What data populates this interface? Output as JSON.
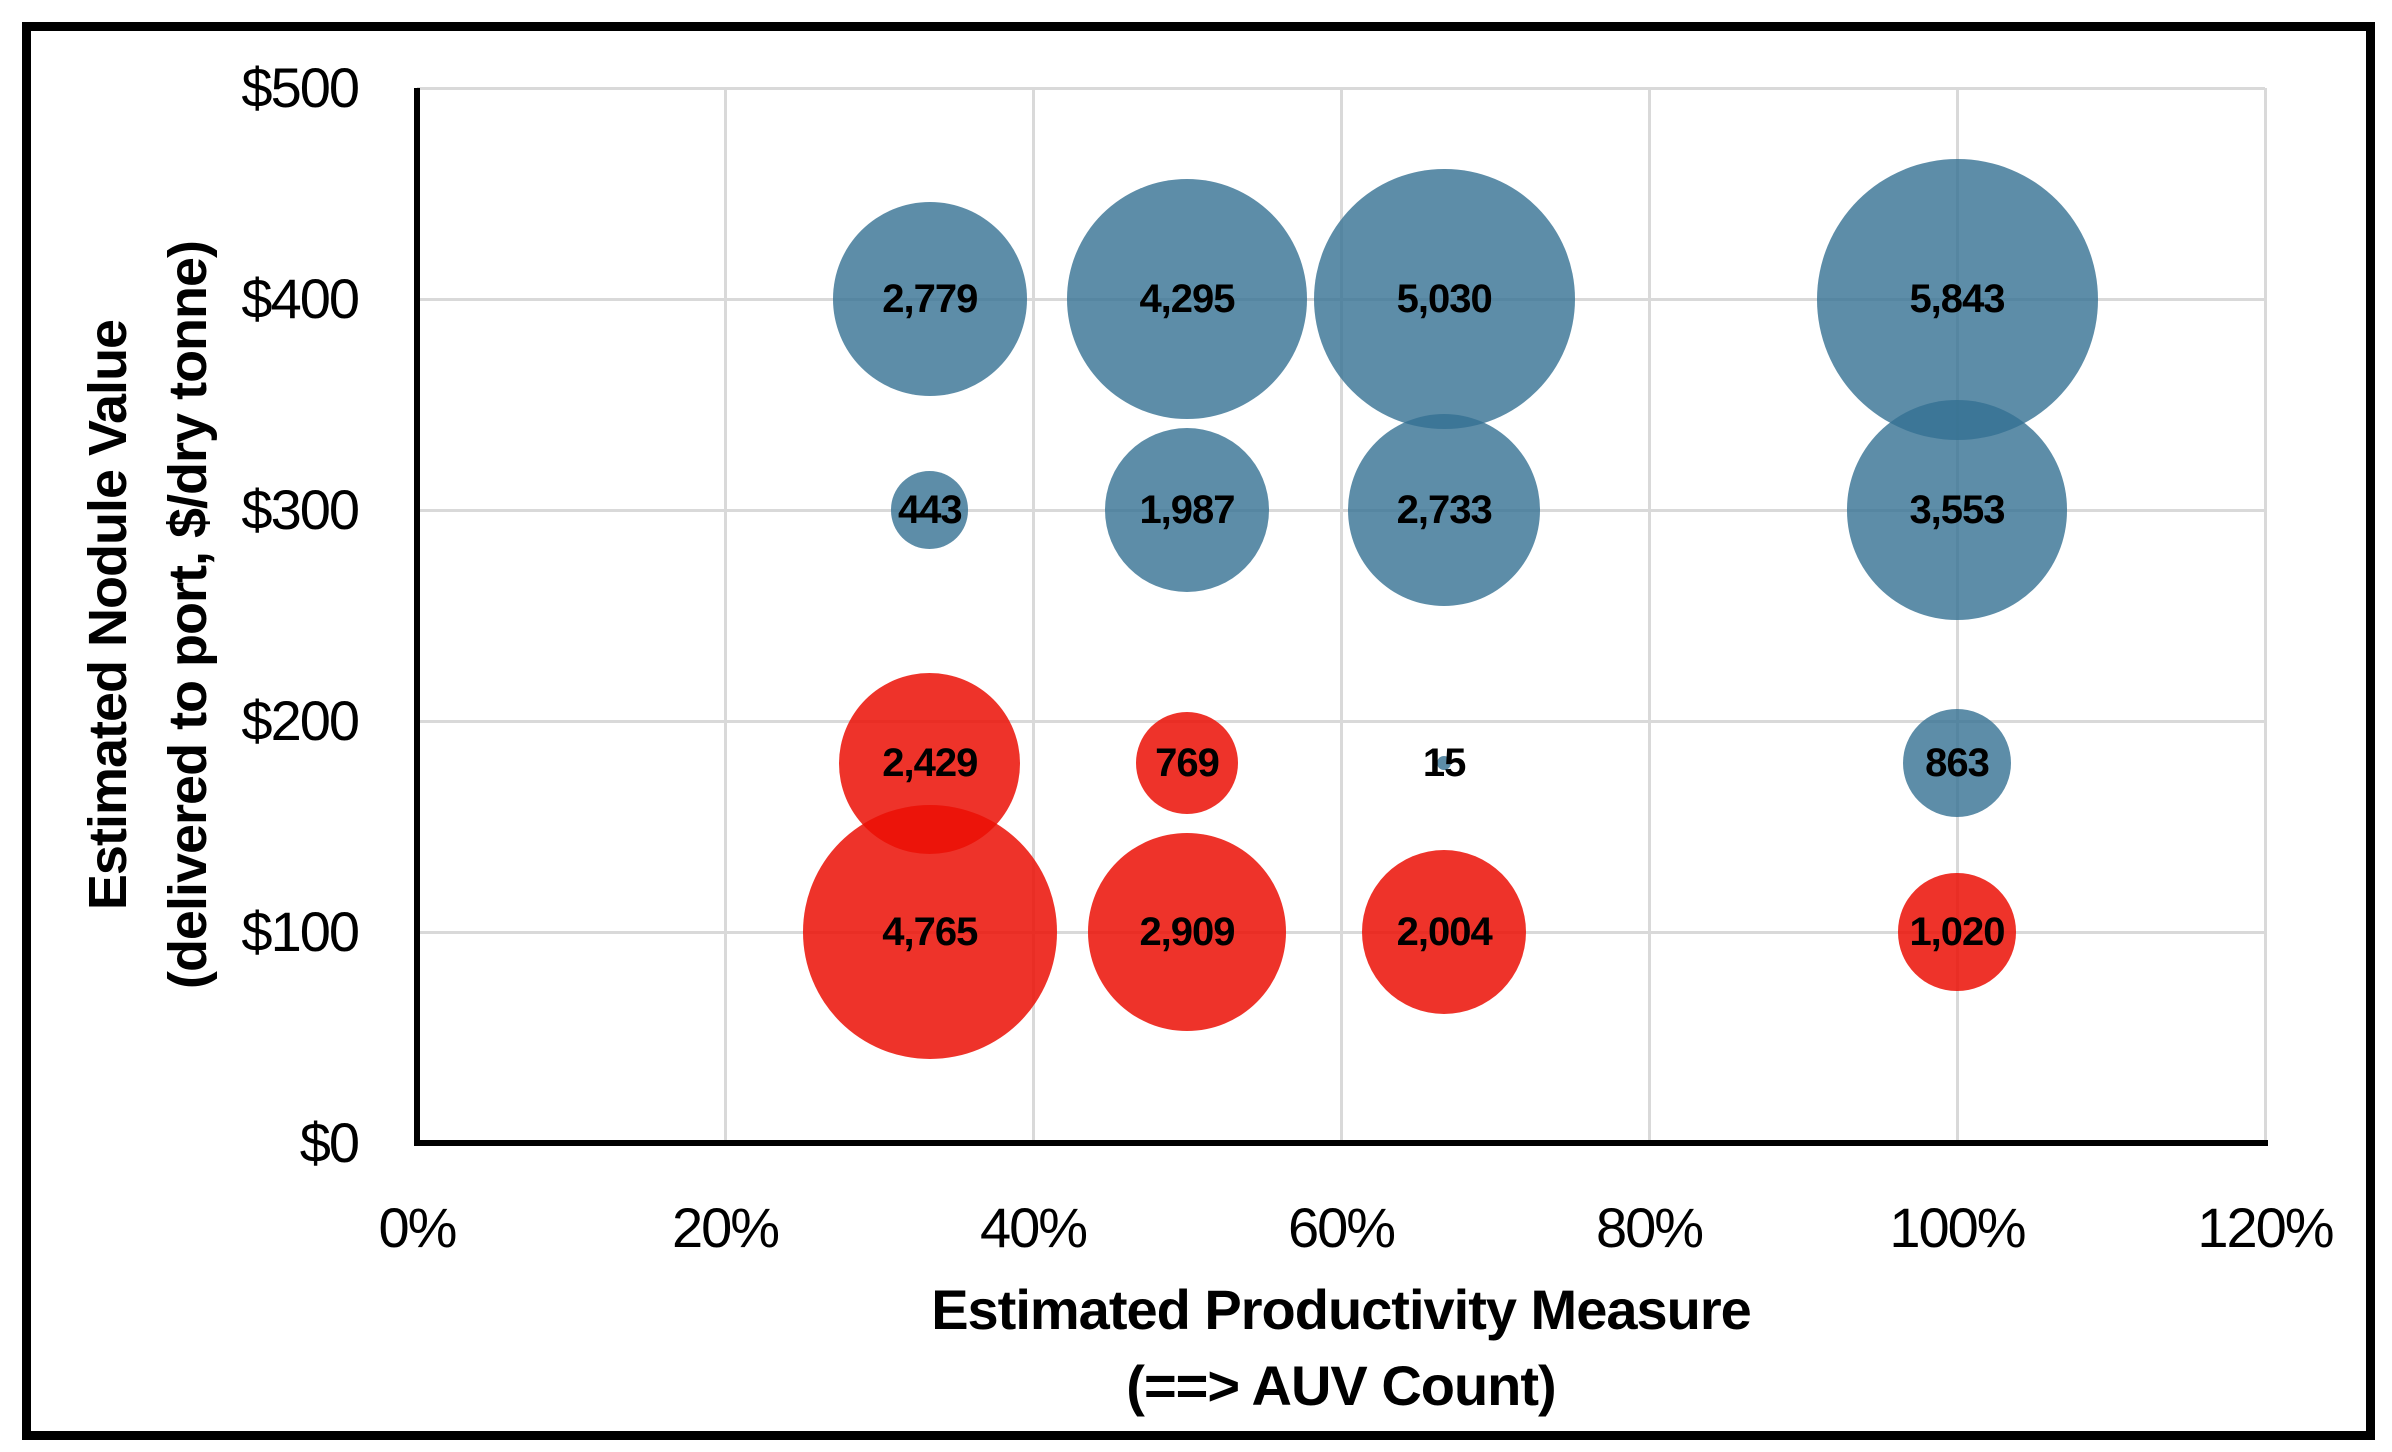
{
  "figure": {
    "background": "#ffffff",
    "border_color": "#000000",
    "gridline_color": "#d9d9d9",
    "axis_color": "#000000"
  },
  "y_axis": {
    "title_line1": "Estimated Nodule Value",
    "title_line2": "(delivered to port, $/dry tonne)",
    "ticks": [
      "$500",
      "$400",
      "$300",
      "$200",
      "$100",
      "$0"
    ],
    "tick_values": [
      500,
      400,
      300,
      200,
      100,
      0
    ]
  },
  "x_axis": {
    "title_line1": "Estimated Productivity Measure",
    "title_line2": "(==> AUV Count)",
    "ticks": [
      "0%",
      "20%",
      "40%",
      "60%",
      "80%",
      "100%",
      "120%"
    ],
    "tick_values": [
      0,
      20,
      40,
      60,
      80,
      100,
      120
    ]
  },
  "chart_data": {
    "type": "bubble",
    "title": "",
    "xlabel": "Estimated Productivity Measure (==> AUV Count)",
    "ylabel": "Estimated Nodule Value (delivered to port, $/dry tonne)",
    "xlim": [
      0,
      120
    ],
    "ylim": [
      0,
      500
    ],
    "x_unit": "percent",
    "y_unit": "$/dry tonne",
    "grid": true,
    "legend": "none",
    "size_encoding": "bubble diameter proportional to sqrt(value)",
    "series": [
      {
        "name": "blue-bubbles",
        "solid_color": "#5B8BA6",
        "fill": "rgba(52,112,146,0.8)",
        "points": [
          {
            "x": 33.3,
            "y": 400,
            "value": 2779,
            "label": "2,779"
          },
          {
            "x": 50,
            "y": 400,
            "value": 4295,
            "label": "4,295"
          },
          {
            "x": 66.7,
            "y": 400,
            "value": 5030,
            "label": "5,030"
          },
          {
            "x": 100,
            "y": 400,
            "value": 5843,
            "label": "5,843"
          },
          {
            "x": 33.3,
            "y": 300,
            "value": 443,
            "label": "443"
          },
          {
            "x": 50,
            "y": 300,
            "value": 1987,
            "label": "1,987"
          },
          {
            "x": 66.7,
            "y": 300,
            "value": 2733,
            "label": "2,733"
          },
          {
            "x": 100,
            "y": 300,
            "value": 3553,
            "label": "3,553"
          },
          {
            "x": 66.7,
            "y": 180,
            "value": 15,
            "label": "15"
          },
          {
            "x": 100,
            "y": 180,
            "value": 863,
            "label": "863"
          }
        ]
      },
      {
        "name": "red-bubbles",
        "solid_color": "#EE3329",
        "fill": "rgba(235,15,5,0.85)",
        "points": [
          {
            "x": 33.3,
            "y": 180,
            "value": 2429,
            "label": "2,429"
          },
          {
            "x": 50,
            "y": 180,
            "value": 769,
            "label": "769"
          },
          {
            "x": 33.3,
            "y": 100,
            "value": 4765,
            "label": "4,765"
          },
          {
            "x": 50,
            "y": 100,
            "value": 2909,
            "label": "2,909"
          },
          {
            "x": 66.7,
            "y": 100,
            "value": 2004,
            "label": "2,004"
          },
          {
            "x": 100,
            "y": 100,
            "value": 1020,
            "label": "1,020"
          }
        ]
      }
    ]
  }
}
